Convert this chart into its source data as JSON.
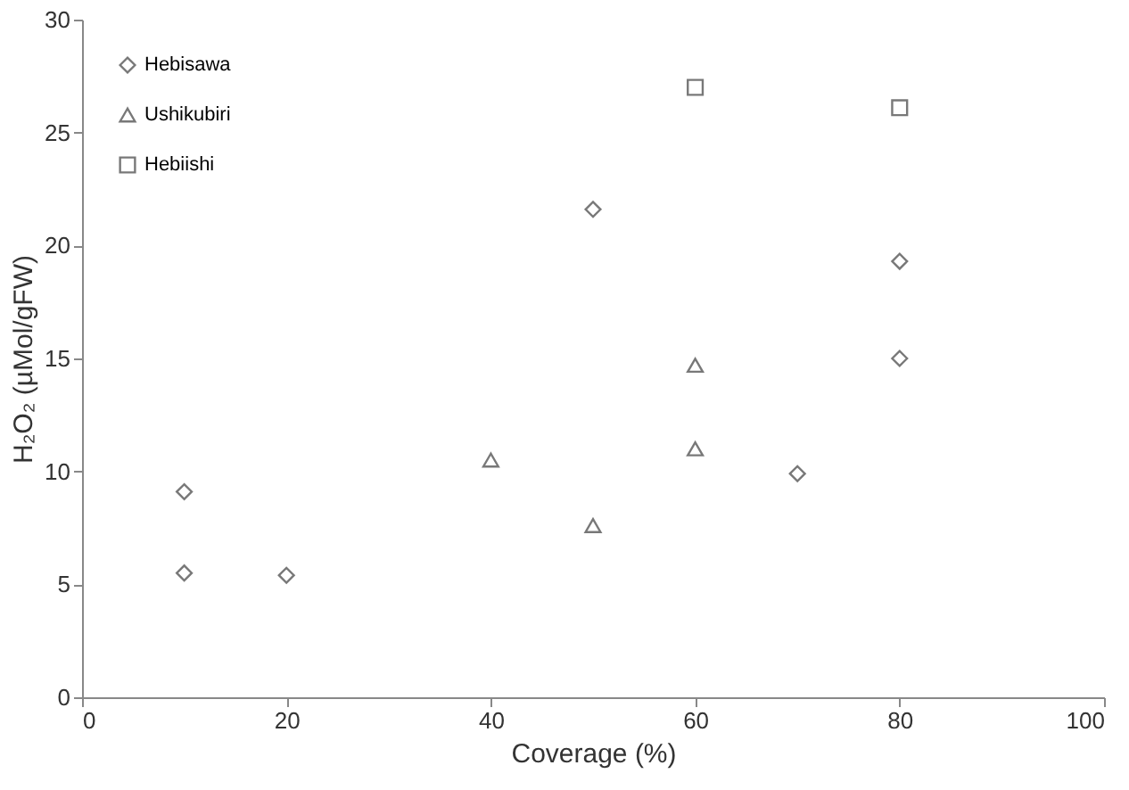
{
  "chart_data": {
    "type": "scatter",
    "xlabel": "Coverage  (%)",
    "ylabel": "H₂O₂ (µMol/gFW)",
    "xlim": [
      0,
      100
    ],
    "xticks": [
      0,
      20,
      40,
      60,
      80,
      100
    ],
    "ylim": [
      0,
      30
    ],
    "yticks": [
      0,
      5,
      10,
      15,
      20,
      25,
      30
    ],
    "grid": false,
    "legend": "top left",
    "series": [
      {
        "name": "Hebisawa",
        "color": "#404040",
        "marker": "diamond",
        "x": [
          10,
          10,
          20,
          50,
          70,
          80,
          80
        ],
        "values": [
          9.1,
          5.5,
          5.4,
          21.6,
          9.9,
          19.3,
          15.0
        ]
      },
      {
        "name": "Ushikubiri",
        "color": "#404040",
        "marker": "triangle",
        "x": [
          40,
          50,
          60,
          60
        ],
        "values": [
          10.5,
          7.6,
          14.7,
          11.0
        ]
      },
      {
        "name": "Hebiishi",
        "color": "#404040",
        "marker": "square",
        "x": [
          60,
          80
        ],
        "values": [
          27.0,
          26.1
        ]
      }
    ]
  }
}
